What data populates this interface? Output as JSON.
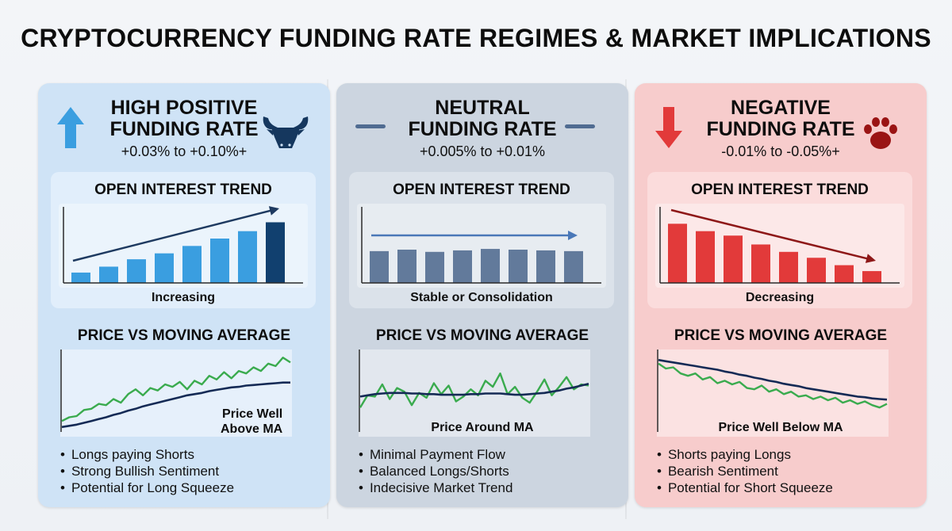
{
  "title": "CRYPTOCURRENCY FUNDING RATE REGIMES & MARKET IMPLICATIONS",
  "colors": {
    "bull_bar": "#3a9ee0",
    "bull_bar_last": "#11406f",
    "bull_arrow": "#1e3a60",
    "neu_bar": "#627a9b",
    "neu_arrow": "#4a78b8",
    "bear_bar": "#e23a3a",
    "bear_arrow": "#8e1818",
    "price_line": "#3aab4e",
    "ma_line": "#142a55"
  },
  "panels": [
    {
      "key": "bull",
      "title_line1": "HIGH POSITIVE",
      "title_line2": "FUNDING RATE",
      "range": "+0.03% to +0.10%+",
      "header_icons": [
        "up-arrow-icon",
        "bull-icon"
      ],
      "oi_title": "OPEN INTEREST TREND",
      "oi_caption": "Increasing",
      "pma_title": "PRICE VS MOVING AVERAGE",
      "pma_caption_line1": "Price Well",
      "pma_caption_line2": "Above MA",
      "bullets": [
        "Longs paying Shorts",
        "Strong Bullish Sentiment",
        "Potential for Long Squeeze"
      ]
    },
    {
      "key": "neu",
      "title_line1": "NEUTRAL",
      "title_line2": "FUNDING RATE",
      "range": "+0.005% to +0.01%",
      "header_icons": [
        "dash-icon",
        "dash-icon"
      ],
      "oi_title": "OPEN INTEREST TREND",
      "oi_caption": "Stable or Consolidation",
      "pma_title": "PRICE VS MOVING AVERAGE",
      "pma_caption_line1": "Price Around MA",
      "pma_caption_line2": "",
      "bullets": [
        "Minimal Payment Flow",
        "Balanced Longs/Shorts",
        "Indecisive Market Trend"
      ]
    },
    {
      "key": "bear",
      "title_line1": "NEGATIVE",
      "title_line2": "FUNDING RATE",
      "range": "-0.01% to -0.05%+",
      "header_icons": [
        "down-arrow-icon",
        "bear-paw-icon"
      ],
      "oi_title": "OPEN INTEREST TREND",
      "oi_caption": "Decreasing",
      "pma_title": "PRICE VS MOVING AVERAGE",
      "pma_caption_line1": "Price Well Below MA",
      "pma_caption_line2": "",
      "bullets": [
        "Shorts paying Longs",
        "Bearish Sentiment",
        "Potential for Short Squeeze"
      ]
    }
  ],
  "chart_data": [
    {
      "type": "bar",
      "panel": "bull",
      "title": "OPEN INTEREST TREND",
      "xlabel": "Increasing",
      "values": [
        14,
        22,
        32,
        40,
        50,
        60,
        70,
        82
      ],
      "trend": "rising"
    },
    {
      "type": "bar",
      "panel": "neu",
      "title": "OPEN INTEREST TREND",
      "xlabel": "Stable or Consolidation",
      "values": [
        43,
        45,
        42,
        44,
        46,
        45,
        44,
        43
      ],
      "trend": "flat"
    },
    {
      "type": "bar",
      "panel": "bear",
      "title": "OPEN INTEREST TREND",
      "xlabel": "Decreasing",
      "values": [
        80,
        70,
        64,
        52,
        42,
        34,
        24,
        16
      ],
      "trend": "falling"
    },
    {
      "type": "line",
      "panel": "bull",
      "title": "PRICE VS MOVING AVERAGE",
      "series": [
        {
          "name": "Price",
          "values": [
            18,
            24,
            26,
            36,
            38,
            46,
            44,
            54,
            48,
            62,
            70,
            60,
            72,
            68,
            78,
            74,
            82,
            70,
            84,
            78,
            92,
            86,
            98,
            88,
            100,
            96,
            106,
            100,
            112,
            108,
            122,
            114
          ]
        },
        {
          "name": "MA",
          "values": [
            8,
            10,
            12,
            15,
            18,
            21,
            24,
            28,
            31,
            35,
            38,
            42,
            45,
            48,
            51,
            54,
            57,
            60,
            62,
            64,
            67,
            69,
            71,
            73,
            74,
            76,
            77,
            78,
            79,
            80,
            81,
            81
          ]
        }
      ]
    },
    {
      "type": "line",
      "panel": "neu",
      "title": "PRICE VS MOVING AVERAGE",
      "series": [
        {
          "name": "Price",
          "values": [
            40,
            60,
            58,
            78,
            54,
            72,
            66,
            44,
            64,
            56,
            80,
            62,
            76,
            50,
            58,
            70,
            60,
            84,
            74,
            96,
            62,
            74,
            56,
            48,
            66,
            86,
            60,
            74,
            90,
            70,
            78,
            76
          ]
        },
        {
          "name": "MA",
          "values": [
            58,
            60,
            62,
            63,
            64,
            64,
            64,
            63,
            63,
            62,
            62,
            61,
            61,
            61,
            61,
            62,
            62,
            63,
            63,
            63,
            62,
            61,
            61,
            62,
            63,
            64,
            66,
            68,
            71,
            73,
            76,
            79
          ]
        }
      ]
    },
    {
      "type": "line",
      "panel": "bear",
      "title": "PRICE VS MOVING AVERAGE",
      "series": [
        {
          "name": "Price",
          "values": [
            112,
            104,
            106,
            96,
            92,
            96,
            86,
            90,
            80,
            84,
            78,
            82,
            72,
            70,
            76,
            66,
            70,
            62,
            66,
            58,
            60,
            54,
            58,
            52,
            56,
            48,
            52,
            46,
            50,
            44,
            40,
            46
          ]
        },
        {
          "name": "MA",
          "values": [
            118,
            116,
            114,
            112,
            110,
            108,
            106,
            104,
            102,
            99,
            97,
            94,
            92,
            89,
            87,
            84,
            82,
            79,
            77,
            75,
            72,
            70,
            68,
            66,
            64,
            62,
            60,
            58,
            57,
            55,
            54,
            53
          ]
        }
      ]
    }
  ]
}
